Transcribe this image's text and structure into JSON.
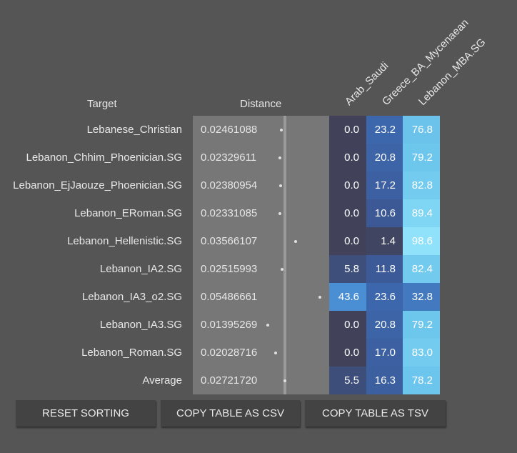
{
  "headers": {
    "target": "Target",
    "distance": "Distance",
    "sources": [
      "Arab_Saudi",
      "Greece_BA_Mycenaean",
      "Lebanon_MBA.SG"
    ]
  },
  "rows": [
    {
      "target": "Lebanese_Christian",
      "distance": "0.02461088",
      "values": [
        "0.0",
        "23.2",
        "76.8"
      ]
    },
    {
      "target": "Lebanon_Chhim_Phoenician.SG",
      "distance": "0.02329611",
      "values": [
        "0.0",
        "20.8",
        "79.2"
      ]
    },
    {
      "target": "Lebanon_EjJaouze_Phoenician.SG",
      "distance": "0.02380954",
      "values": [
        "0.0",
        "17.2",
        "82.8"
      ]
    },
    {
      "target": "Lebanon_ERoman.SG",
      "distance": "0.02331085",
      "values": [
        "0.0",
        "10.6",
        "89.4"
      ]
    },
    {
      "target": "Lebanon_Hellenistic.SG",
      "distance": "0.03566107",
      "values": [
        "0.0",
        "1.4",
        "98.6"
      ]
    },
    {
      "target": "Lebanon_IA2.SG",
      "distance": "0.02515993",
      "values": [
        "5.8",
        "11.8",
        "82.4"
      ]
    },
    {
      "target": "Lebanon_IA3_o2.SG",
      "distance": "0.05486661",
      "values": [
        "43.6",
        "23.6",
        "32.8"
      ]
    },
    {
      "target": "Lebanon_IA3.SG",
      "distance": "0.01395269",
      "values": [
        "0.0",
        "20.8",
        "79.2"
      ]
    },
    {
      "target": "Lebanon_Roman.SG",
      "distance": "0.02028716",
      "values": [
        "0.0",
        "17.0",
        "83.0"
      ]
    },
    {
      "target": "Average",
      "distance": "0.02721720",
      "values": [
        "5.5",
        "16.3",
        "78.2"
      ]
    }
  ],
  "buttons": {
    "reset": "RESET SORTING",
    "csv": "COPY TABLE AS CSV",
    "tsv": "COPY TABLE AS TSV"
  }
}
